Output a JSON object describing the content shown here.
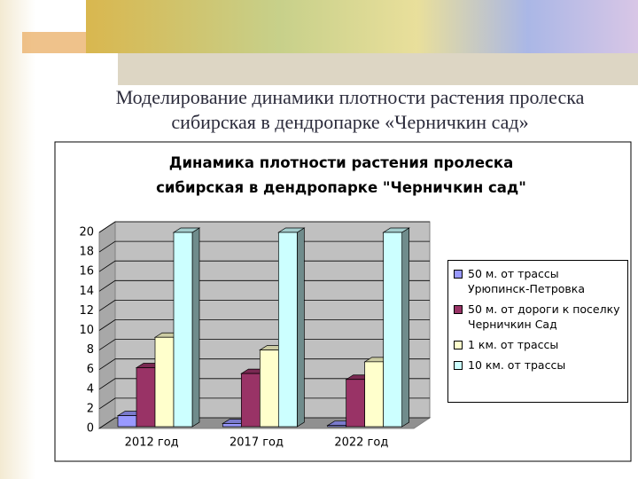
{
  "slide_title": "Моделирование динамики плотности растения пролеска сибирская в дендропарке «Черничкин сад»",
  "chart_data": {
    "type": "bar3d",
    "title": "Динамика плотности растения пролеска сибирская в дендропарке \"Черничкин сад\"",
    "categories": [
      "2012 год",
      "2017 год",
      "2022 год"
    ],
    "series": [
      {
        "name": "50 м. от трассы Урюпинск-Петровка",
        "color": "#9999ff",
        "values": [
          1.3,
          0.5,
          0.3
        ]
      },
      {
        "name": "50 м. от дороги к поселку Черничкин Сад",
        "color": "#993366",
        "values": [
          6.2,
          5.6,
          5.0
        ]
      },
      {
        "name": "1 км. от трассы",
        "color": "#ffffcc",
        "values": [
          9.3,
          8.0,
          6.8
        ]
      },
      {
        "name": "10 км. от трассы",
        "color": "#ccffff",
        "values": [
          20,
          20,
          20
        ]
      }
    ],
    "ylim": [
      0,
      20
    ],
    "yticks": [
      0,
      2,
      4,
      6,
      8,
      10,
      12,
      14,
      16,
      18,
      20
    ],
    "grid": true
  }
}
